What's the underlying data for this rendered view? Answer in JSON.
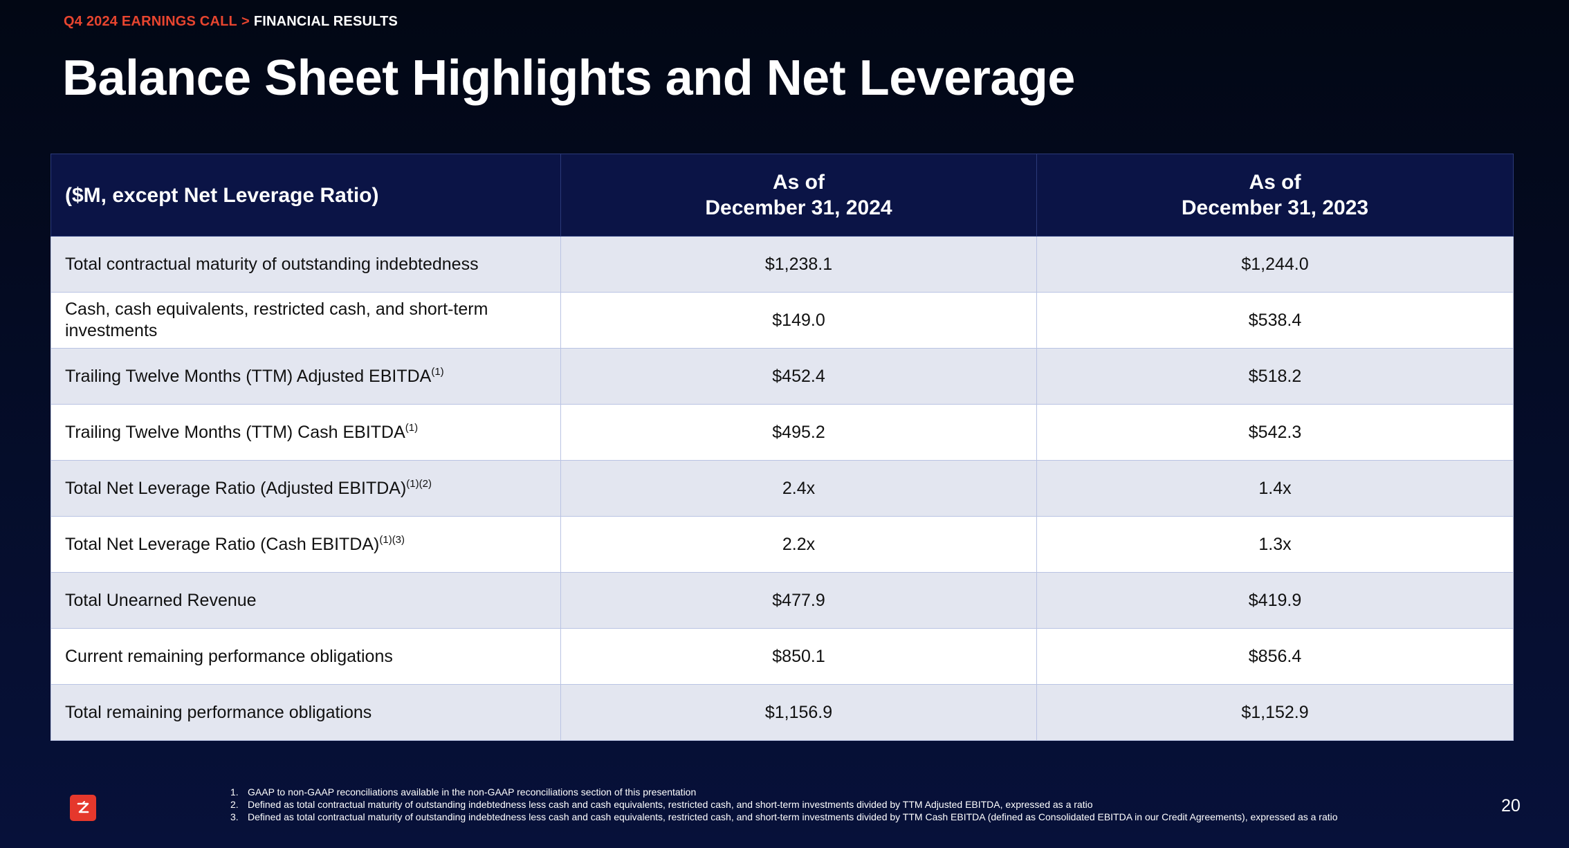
{
  "breadcrumb": {
    "section": "Q4 2024 EARNINGS CALL",
    "separator": ">",
    "current": "FINANCIAL RESULTS"
  },
  "title": "Balance Sheet Highlights and Net Leverage",
  "table": {
    "header": {
      "label": "($M, except Net Leverage Ratio)",
      "col1_line1": "As of",
      "col1_line2": "December 31, 2024",
      "col2_line1": "As of",
      "col2_line2": "December 31, 2023"
    },
    "rows": [
      {
        "label": "Total contractual maturity of outstanding indebtedness",
        "sup": "",
        "v2024": "$1,238.1",
        "v2023": "$1,244.0"
      },
      {
        "label": "Cash, cash equivalents, restricted cash, and short-term investments",
        "sup": "",
        "v2024": "$149.0",
        "v2023": "$538.4"
      },
      {
        "label": "Trailing Twelve Months (TTM) Adjusted EBITDA",
        "sup": "(1)",
        "v2024": "$452.4",
        "v2023": "$518.2"
      },
      {
        "label": "Trailing Twelve Months (TTM) Cash EBITDA",
        "sup": "(1)",
        "v2024": "$495.2",
        "v2023": "$542.3"
      },
      {
        "label": "Total Net Leverage Ratio (Adjusted EBITDA)",
        "sup": "(1)(2)",
        "v2024": "2.4x",
        "v2023": "1.4x"
      },
      {
        "label": "Total Net Leverage Ratio (Cash EBITDA)",
        "sup": "(1)(3)",
        "v2024": "2.2x",
        "v2023": "1.3x"
      },
      {
        "label": "Total Unearned Revenue",
        "sup": "",
        "v2024": "$477.9",
        "v2023": "$419.9"
      },
      {
        "label": "Current remaining performance obligations",
        "sup": "",
        "v2024": "$850.1",
        "v2023": "$856.4"
      },
      {
        "label": "Total remaining performance obligations",
        "sup": "",
        "v2024": "$1,156.9",
        "v2023": "$1,152.9"
      }
    ]
  },
  "footnotes": [
    {
      "num": "1.",
      "text": "GAAP to non-GAAP reconciliations available in the non-GAAP reconciliations section of this presentation"
    },
    {
      "num": "2.",
      "text": "Defined as total contractual maturity of outstanding indebtedness less cash and cash equivalents, restricted cash, and short-term investments divided by TTM Adjusted EBITDA, expressed as a ratio"
    },
    {
      "num": "3.",
      "text": "Defined as total contractual maturity of outstanding indebtedness less cash and cash equivalents, restricted cash, and short-term investments divided by TTM Cash EBITDA (defined as Consolidated EBITDA in our Credit Agreements), expressed as a ratio"
    }
  ],
  "page_number": "20",
  "colors": {
    "accent": "#e8452f",
    "header_bg": "#0b1446",
    "row_alt": "#e3e6f0"
  },
  "logo_icon": "zoominfo-z-logo-icon"
}
